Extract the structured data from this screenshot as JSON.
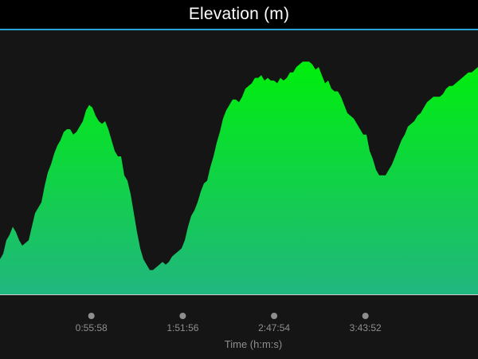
{
  "header": {
    "title": "Elevation (m)"
  },
  "colors": {
    "background": "#151515",
    "header_background": "#000000",
    "header_border": "#2aa3d9",
    "area_top": "#00ee0e",
    "area_bottom": "#21b67f",
    "baseline": "#cfcfcf",
    "tick": "#8e8e8e"
  },
  "chart_data": {
    "type": "area",
    "title": "Elevation (m)",
    "xlabel": "Time (h:m:s)",
    "ylabel": "",
    "x_unit": "seconds",
    "xlim": [
      0,
      17568
    ],
    "ylim": [
      0,
      100
    ],
    "y_axis_shown": false,
    "grid": false,
    "legend": "none",
    "x_ticks": [
      {
        "value": 3358,
        "label": "0:55:58"
      },
      {
        "value": 6716,
        "label": "1:51:56"
      },
      {
        "value": 10074,
        "label": "2:47:54"
      },
      {
        "value": 13432,
        "label": "3:43:52"
      }
    ],
    "series": [
      {
        "x": [
          0,
          117,
          234,
          351,
          468,
          585,
          703,
          820,
          937,
          1054,
          1171,
          1288,
          1405,
          1522,
          1639,
          1757,
          1874,
          1991,
          2108,
          2225,
          2342,
          2459,
          2576,
          2693,
          2811,
          2928,
          3045,
          3162,
          3279,
          3396,
          3513,
          3630,
          3748,
          3865,
          3982,
          4099,
          4216,
          4333,
          4450,
          4567,
          4684,
          4802,
          4919,
          5036,
          5153,
          5270,
          5387,
          5504,
          5621,
          5738,
          5856,
          5973,
          6090,
          6207,
          6324,
          6441,
          6558,
          6675,
          6793,
          6910,
          7027,
          7144,
          7261,
          7378,
          7495,
          7612,
          7729,
          7847,
          7964,
          8081,
          8198,
          8315,
          8432,
          8549,
          8666,
          8783,
          8901,
          9018,
          9135,
          9252,
          9369,
          9486,
          9603,
          9720,
          9838,
          9955,
          10072,
          10189,
          10306,
          10423,
          10540,
          10657,
          10774,
          10891,
          11009,
          11126,
          11243,
          11360,
          11477,
          11594,
          11711,
          11828,
          11946,
          12063,
          12180,
          12297,
          12414,
          12531,
          12648,
          12765,
          12882,
          13000,
          13117,
          13234,
          13351,
          13468,
          13585,
          13702,
          13819,
          13936,
          14054,
          14171,
          14288,
          14405,
          14522,
          14639,
          14756,
          14873,
          14990,
          15108,
          15225,
          15342,
          15459,
          15576,
          15693,
          15810,
          15927,
          16044,
          16162,
          16279,
          16396,
          16513,
          16630,
          16747,
          16864,
          16981,
          17098,
          17216,
          17333,
          17450,
          17568
        ],
        "values": [
          13,
          15,
          20,
          22,
          25,
          23,
          20,
          18,
          19,
          20,
          25,
          30,
          32,
          34,
          40,
          45,
          48,
          52,
          55,
          57,
          60,
          61,
          61,
          59,
          60,
          62,
          64,
          68,
          70,
          69,
          66,
          64,
          63,
          64,
          61,
          57,
          53,
          51,
          51,
          44,
          42,
          37,
          30,
          23,
          17,
          13,
          11,
          9,
          9,
          10,
          11,
          12,
          11,
          12,
          14,
          15,
          16,
          17,
          20,
          25,
          29,
          31,
          34,
          38,
          41,
          42,
          47,
          51,
          56,
          60,
          65,
          68,
          70,
          72,
          72,
          71,
          73,
          76,
          77,
          78,
          80,
          80,
          81,
          79,
          80,
          79,
          79,
          78,
          80,
          79,
          80,
          82,
          82,
          84,
          85,
          86,
          86,
          86,
          85,
          83,
          84,
          81,
          78,
          79,
          76,
          75,
          75,
          73,
          70,
          67,
          66,
          65,
          63,
          61,
          59,
          59,
          53,
          50,
          46,
          44,
          44,
          44,
          46,
          48,
          51,
          54,
          57,
          59,
          62,
          63,
          64,
          66,
          67,
          69,
          71,
          72,
          73,
          73,
          73,
          74,
          76,
          77,
          77,
          78,
          79,
          80,
          81,
          82,
          82,
          83,
          84
        ]
      }
    ]
  }
}
